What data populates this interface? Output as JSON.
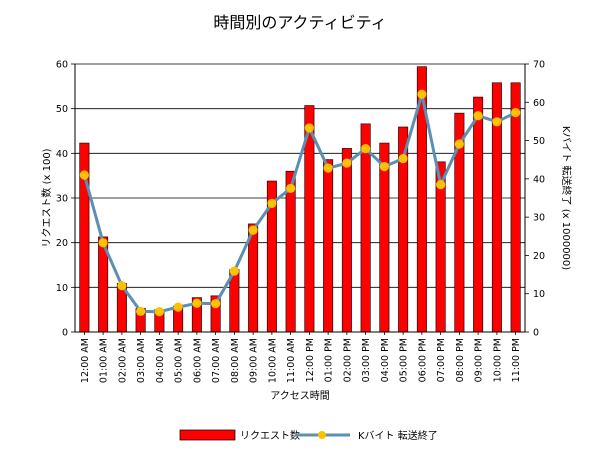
{
  "chart_data": {
    "type": "bar",
    "title": "時間別のアクティビティ",
    "xlabel": "アクセス時間",
    "ylabel_left": "リクエスト数 (x 100)",
    "ylabel_right": "Kバイト 転送終了 (x 1000000)",
    "ylim_left": [
      0,
      60
    ],
    "ylim_right": [
      0,
      70
    ],
    "yticks_left": [
      "0",
      "10",
      "20",
      "30",
      "40",
      "50",
      "60"
    ],
    "yticks_right": [
      "0",
      "10",
      "20",
      "30",
      "40",
      "50",
      "60",
      "70"
    ],
    "grid": true,
    "legend_position": "bottom",
    "categories": [
      "12:00 AM",
      "01:00 AM",
      "02:00 AM",
      "03:00 AM",
      "04:00 AM",
      "05:00 AM",
      "06:00 AM",
      "07:00 AM",
      "08:00 AM",
      "09:00 AM",
      "10:00 AM",
      "11:00 AM",
      "12:00 PM",
      "01:00 PM",
      "02:00 PM",
      "03:00 PM",
      "04:00 PM",
      "05:00 PM",
      "06:00 PM",
      "07:00 PM",
      "08:00 PM",
      "09:00 PM",
      "10:00 PM",
      "11:00 PM"
    ],
    "series": [
      {
        "name": "リクエスト数",
        "kind": "bar",
        "axis": "left",
        "color": "#ff0000",
        "values": [
          42.3,
          21.3,
          10.9,
          5.3,
          5.0,
          5.8,
          7.7,
          8.1,
          14.0,
          24.2,
          33.8,
          36.0,
          50.7,
          38.6,
          41.1,
          46.6,
          42.3,
          45.9,
          59.4,
          38.1,
          49.0,
          52.6,
          55.8,
          55.8
        ]
      },
      {
        "name": "Kバイト 転送終了",
        "kind": "line",
        "axis": "right",
        "color": "#5b8fb3",
        "marker_color": "#ffc000",
        "values": [
          41.0,
          23.3,
          12.1,
          5.4,
          5.3,
          6.5,
          7.5,
          7.4,
          15.9,
          26.6,
          33.6,
          37.5,
          53.3,
          42.8,
          44.1,
          47.9,
          43.2,
          45.3,
          62.1,
          38.5,
          49.1,
          56.5,
          54.9,
          57.3
        ]
      }
    ]
  }
}
